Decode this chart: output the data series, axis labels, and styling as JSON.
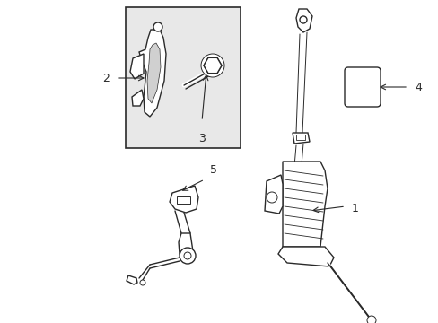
{
  "bg_color": "#ffffff",
  "line_color": "#2a2a2a",
  "label_color": "#000000",
  "box_bg": "#e8e8e8",
  "box_border": "#2a2a2a"
}
